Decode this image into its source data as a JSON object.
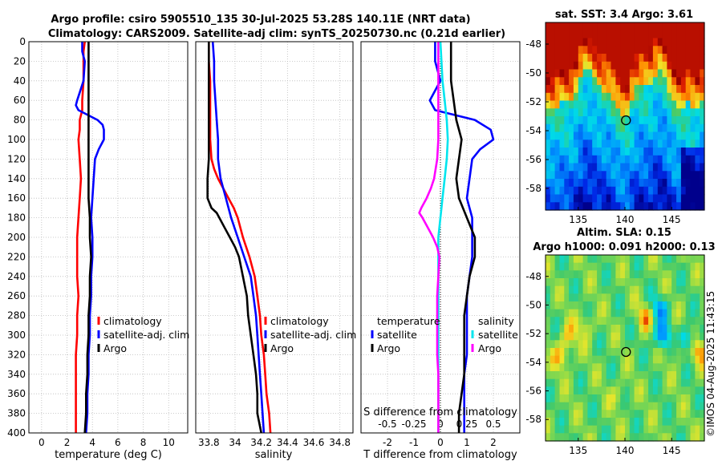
{
  "header": {
    "line1": "Argo profile: csiro 5905510_135 30-Jul-2025 53.28S 140.11E (NRT data)",
    "line2": "Climatology: CARS2009. Satellite-adj clim: synTS_20250730.nc (0.21d earlier)"
  },
  "watermark": "©IMOS 04-Aug-2025 11:43:15",
  "colors": {
    "red": "#ff0000",
    "blue": "#0000ff",
    "black": "#000000",
    "cyan": "#00e5ee",
    "magenta": "#ff00ff"
  },
  "chart_data": [
    {
      "type": "line",
      "name": "temperature-profile",
      "xlabel": "temperature (deg C)",
      "ylabel": "",
      "xlim": [
        -1,
        11.5
      ],
      "ylim": [
        400,
        0
      ],
      "xticks": [
        0,
        2,
        4,
        6,
        8,
        10
      ],
      "yticks": [
        0,
        20,
        40,
        60,
        80,
        100,
        120,
        140,
        160,
        180,
        200,
        220,
        240,
        260,
        280,
        300,
        320,
        340,
        360,
        380,
        400
      ],
      "grid": true,
      "legend": {
        "position": "middle-right",
        "entries": [
          "climatology",
          "satellite-adj. clim",
          "Argo"
        ]
      },
      "series": [
        {
          "name": "climatology",
          "color": "red",
          "depth": [
            0,
            10,
            20,
            40,
            60,
            70,
            80,
            90,
            100,
            120,
            140,
            160,
            180,
            200,
            220,
            240,
            260,
            280,
            300,
            320,
            340,
            360,
            380,
            400
          ],
          "values": [
            3.4,
            3.3,
            3.3,
            3.3,
            3.2,
            3.2,
            3.0,
            3.0,
            2.9,
            3.0,
            3.1,
            3.0,
            2.9,
            2.8,
            2.8,
            2.8,
            2.9,
            2.8,
            2.8,
            2.7,
            2.7,
            2.7,
            2.7,
            2.7
          ]
        },
        {
          "name": "satellite-adj. clim",
          "color": "blue",
          "depth": [
            0,
            10,
            20,
            40,
            60,
            65,
            70,
            80,
            85,
            90,
            100,
            110,
            120,
            140,
            160,
            180,
            200,
            220,
            240,
            260,
            280,
            300,
            320,
            340,
            360,
            380,
            400
          ],
          "values": [
            3.2,
            3.2,
            3.4,
            3.3,
            2.8,
            2.7,
            2.9,
            4.4,
            4.8,
            4.9,
            4.9,
            4.5,
            4.2,
            4.1,
            4.0,
            3.9,
            4.0,
            4.0,
            3.9,
            3.9,
            3.8,
            3.8,
            3.7,
            3.7,
            3.6,
            3.6,
            3.5
          ]
        },
        {
          "name": "Argo",
          "color": "black",
          "depth": [
            0,
            10,
            20,
            40,
            60,
            80,
            100,
            120,
            140,
            160,
            180,
            200,
            220,
            240,
            260,
            280,
            300,
            320,
            340,
            360,
            380,
            400
          ],
          "values": [
            3.7,
            3.7,
            3.7,
            3.7,
            3.7,
            3.7,
            3.7,
            3.7,
            3.7,
            3.7,
            3.8,
            3.8,
            3.9,
            3.8,
            3.8,
            3.7,
            3.7,
            3.6,
            3.6,
            3.5,
            3.5,
            3.4
          ]
        }
      ]
    },
    {
      "type": "line",
      "name": "salinity-profile",
      "xlabel": "salinity",
      "ylabel": "",
      "xlim": [
        33.7,
        34.9
      ],
      "ylim": [
        400,
        0
      ],
      "xticks": [
        33.8,
        34,
        34.2,
        34.4,
        34.6,
        34.8
      ],
      "xticklabels": [
        "33.8",
        "34",
        "34.2",
        "34.4",
        "34.6",
        "34.8"
      ],
      "grid": true,
      "legend": {
        "position": "middle-right",
        "entries": [
          "climatology",
          "satellite-adj. clim",
          "Argo"
        ]
      },
      "series": [
        {
          "name": "climatology",
          "color": "red",
          "depth": [
            0,
            20,
            40,
            60,
            80,
            100,
            120,
            130,
            140,
            150,
            160,
            170,
            180,
            200,
            220,
            240,
            260,
            280,
            300,
            320,
            340,
            360,
            380,
            400
          ],
          "values": [
            33.8,
            33.8,
            33.81,
            33.81,
            33.81,
            33.81,
            33.82,
            33.84,
            33.87,
            33.91,
            33.95,
            33.99,
            34.02,
            34.06,
            34.11,
            34.15,
            34.17,
            34.19,
            34.2,
            34.22,
            34.23,
            34.24,
            34.26,
            34.27
          ]
        },
        {
          "name": "satellite-adj. clim",
          "color": "blue",
          "depth": [
            0,
            20,
            40,
            60,
            80,
            100,
            120,
            140,
            160,
            180,
            200,
            220,
            240,
            260,
            280,
            300,
            320,
            340,
            360,
            380,
            400
          ],
          "values": [
            33.83,
            33.84,
            33.84,
            33.85,
            33.86,
            33.87,
            33.87,
            33.89,
            33.93,
            33.97,
            34.02,
            34.07,
            34.12,
            34.14,
            34.16,
            34.17,
            34.18,
            34.19,
            34.2,
            34.21,
            34.22
          ]
        },
        {
          "name": "Argo",
          "color": "black",
          "depth": [
            0,
            20,
            40,
            60,
            80,
            100,
            120,
            140,
            160,
            170,
            175,
            180,
            190,
            200,
            210,
            220,
            240,
            260,
            280,
            300,
            320,
            340,
            360,
            380,
            400
          ],
          "values": [
            33.8,
            33.8,
            33.8,
            33.8,
            33.8,
            33.8,
            33.8,
            33.79,
            33.79,
            33.82,
            33.86,
            33.88,
            33.92,
            33.96,
            34.0,
            34.03,
            34.06,
            34.09,
            34.1,
            34.12,
            34.14,
            34.16,
            34.17,
            34.17,
            34.2
          ]
        }
      ]
    },
    {
      "type": "line",
      "name": "difference-profile",
      "xlabel": "T difference from climatology",
      "xlabel_top": "S difference from climatology",
      "xlim": [
        -3,
        3
      ],
      "ylim": [
        400,
        0
      ],
      "xticks": [
        -2,
        -1,
        0,
        1,
        2
      ],
      "s_xlim": [
        -0.75,
        0.75
      ],
      "s_xticks": [
        -0.5,
        -0.25,
        0,
        0.25,
        0.5
      ],
      "s_xticklabels": [
        "-0.5",
        "-0.25",
        "0",
        "0.25",
        "0.5"
      ],
      "grid": true,
      "legend_t": {
        "position": "middle-left",
        "title": "temperature",
        "entries": [
          "satellite",
          "Argo"
        ]
      },
      "legend_s": {
        "position": "middle-right",
        "title": "salinity",
        "entries": [
          "satellite",
          "Argo"
        ]
      },
      "series": [
        {
          "name": "temperature satellite",
          "color": "blue",
          "units": "T",
          "depth": [
            0,
            20,
            40,
            60,
            70,
            80,
            90,
            100,
            110,
            120,
            140,
            160,
            180,
            200,
            220,
            240,
            260,
            280,
            300,
            320,
            340,
            360,
            380,
            400
          ],
          "values": [
            -0.2,
            -0.2,
            0,
            -0.4,
            -0.2,
            1.3,
            1.9,
            2.0,
            1.5,
            1.2,
            1.1,
            1.0,
            1.2,
            1.2,
            1.2,
            1.1,
            1.0,
            1.0,
            1.0,
            1.0,
            0.9,
            0.9,
            0.9,
            0.9
          ]
        },
        {
          "name": "temperature Argo",
          "color": "black",
          "units": "T",
          "depth": [
            0,
            20,
            40,
            60,
            80,
            100,
            120,
            140,
            160,
            180,
            200,
            220,
            240,
            260,
            280,
            300,
            320,
            340,
            360,
            380,
            400
          ],
          "values": [
            0.4,
            0.4,
            0.4,
            0.5,
            0.6,
            0.8,
            0.7,
            0.6,
            0.7,
            1.0,
            1.3,
            1.3,
            1.1,
            1.0,
            0.9,
            0.9,
            0.9,
            0.9,
            0.8,
            0.7,
            0.7
          ]
        },
        {
          "name": "salinity satellite",
          "color": "cyan",
          "units": "S",
          "depth": [
            0,
            20,
            40,
            60,
            80,
            100,
            120,
            140,
            160,
            180,
            200,
            220,
            240,
            260,
            280,
            300,
            320,
            340,
            360,
            380,
            400
          ],
          "values": [
            0.0,
            0.01,
            0.02,
            0.04,
            0.06,
            0.07,
            0.06,
            0.04,
            0.02,
            0.0,
            -0.02,
            -0.02,
            -0.02,
            -0.02,
            -0.02,
            -0.02,
            -0.02,
            -0.02,
            -0.02,
            -0.02,
            -0.02
          ]
        },
        {
          "name": "salinity Argo",
          "color": "magenta",
          "units": "S",
          "depth": [
            0,
            20,
            40,
            60,
            80,
            100,
            120,
            140,
            150,
            160,
            170,
            175,
            180,
            190,
            200,
            210,
            220,
            240,
            260,
            280,
            300,
            320,
            340,
            360,
            380,
            400
          ],
          "values": [
            -0.02,
            -0.02,
            -0.02,
            -0.02,
            -0.02,
            -0.02,
            -0.03,
            -0.06,
            -0.09,
            -0.13,
            -0.18,
            -0.2,
            -0.17,
            -0.12,
            -0.07,
            -0.03,
            -0.01,
            -0.02,
            -0.03,
            -0.03,
            -0.03,
            -0.03,
            -0.02,
            -0.02,
            -0.02,
            -0.02
          ]
        }
      ]
    },
    {
      "type": "heatmap",
      "name": "sst-map",
      "title": "sat. SST: 3.4 Argo: 3.61",
      "xlim": [
        131.5,
        148.5
      ],
      "ylim": [
        -59.5,
        -46.5
      ],
      "xticks": [
        135,
        140,
        145
      ],
      "yticks": [
        -48,
        -50,
        -52,
        -54,
        -56,
        -58
      ],
      "marker": {
        "lon": 140.11,
        "lat": -53.28
      }
    },
    {
      "type": "heatmap",
      "name": "sla-map",
      "title": "Altim. SLA: 0.15",
      "subtitle": "Argo h1000: 0.091 h2000: 0.13",
      "xlim": [
        131.5,
        148.5
      ],
      "ylim": [
        -59.5,
        -46.5
      ],
      "xticks": [
        135,
        140,
        145
      ],
      "yticks": [
        -48,
        -50,
        -52,
        -54,
        -56,
        -58
      ],
      "marker": {
        "lon": 140.11,
        "lat": -53.28
      }
    }
  ]
}
